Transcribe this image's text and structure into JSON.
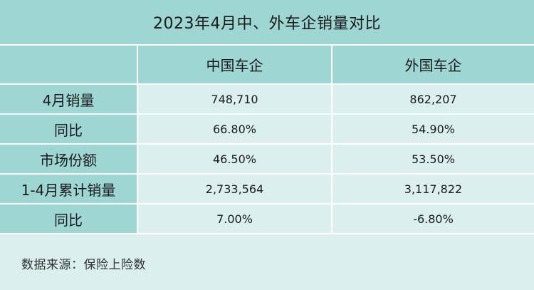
{
  "title": "2023年4月中、外车企销量对比",
  "source": "数据来源：保险上险数",
  "chart_data": {
    "type": "table",
    "title": "2023年4月中、外车企销量对比",
    "columns": [
      "",
      "中国车企",
      "外国车企"
    ],
    "rows": [
      {
        "label": "4月销量",
        "values": [
          "748,710",
          "862,207"
        ]
      },
      {
        "label": "同比",
        "values": [
          "66.80%",
          "54.90%"
        ]
      },
      {
        "label": "市场份额",
        "values": [
          "46.50%",
          "53.50%"
        ]
      },
      {
        "label": "1-4月累计销量",
        "values": [
          "2,733,564",
          "3,117,822"
        ]
      },
      {
        "label": "同比",
        "values": [
          "7.00%",
          "-6.80%"
        ]
      }
    ]
  }
}
